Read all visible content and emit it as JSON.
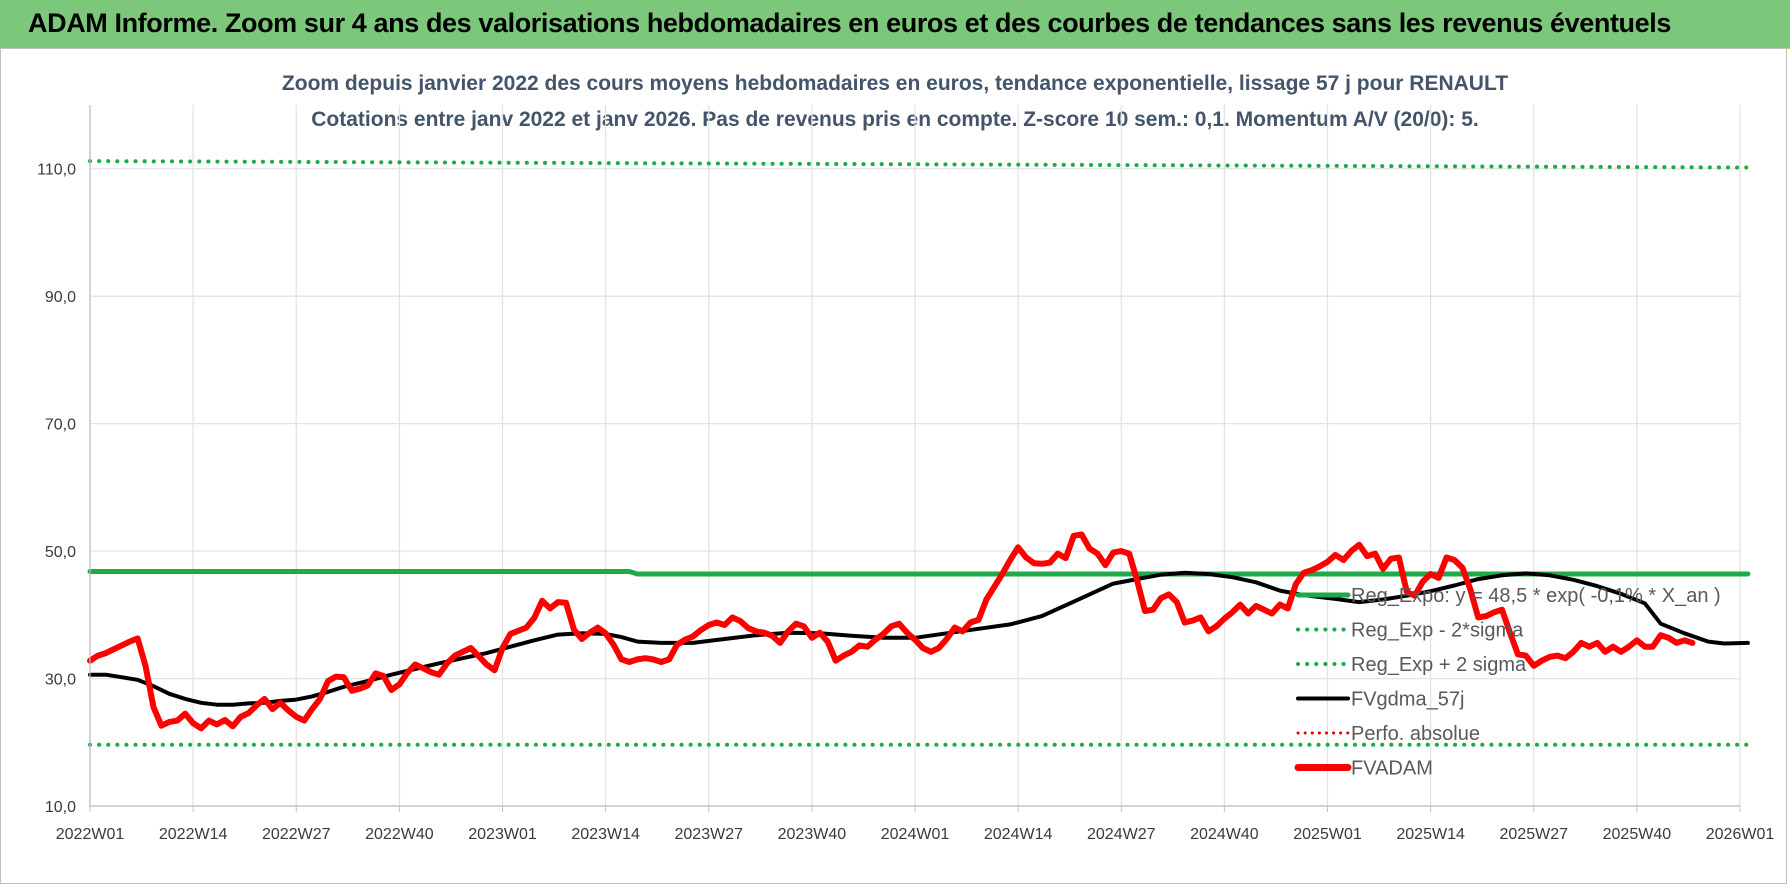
{
  "header": {
    "title": "ADAM Informe. Zoom sur 4 ans des valorisations hebdomadaires en euros et des courbes de tendances sans les revenus éventuels"
  },
  "chart_data": {
    "type": "line",
    "title": "Zoom depuis janvier 2022 des cours moyens hebdomadaires en euros, tendance exponentielle, lissage 57 j pour RENAULT",
    "subtitle": "Cotations entre janv 2022 et janv 2026. Pas de revenus pris en compte. Z-score 10 sem.: 0,1. Momentum A/V (20/0): 5.",
    "ylim": [
      10,
      120
    ],
    "yticks": [
      10,
      30,
      50,
      70,
      90,
      110
    ],
    "ytick_labels": [
      "10,0",
      "30,0",
      "50,0",
      "70,0",
      "90,0",
      "110,0"
    ],
    "xticks": [
      "2022W01",
      "2022W14",
      "2022W27",
      "2022W40",
      "2023W01",
      "2023W14",
      "2023W27",
      "2023W40",
      "2024W01",
      "2024W14",
      "2024W27",
      "2024W40",
      "2025W01",
      "2025W14",
      "2025W27",
      "2025W40",
      "2026W01"
    ],
    "grid": true,
    "legend_position": "bottom-right",
    "colors": {
      "reg_expo": "#1faa4a",
      "reg_minus": "#1faa4a",
      "reg_plus": "#1faa4a",
      "fvgdma": "#000000",
      "perfo": "#e00000",
      "fvadam": "#ff0000"
    },
    "series": [
      {
        "name": "Reg_Expo: y = 48,5 * exp( -0,1% * X_an )",
        "style": "solid-thick",
        "points": [
          [
            0,
            46.8
          ],
          [
            68,
            46.8
          ],
          [
            69,
            46.4
          ],
          [
            209,
            46.4
          ]
        ]
      },
      {
        "name": "Reg_Exp - 2*sigma",
        "style": "dotted",
        "points": [
          [
            0,
            19.6
          ],
          [
            209,
            19.6
          ]
        ]
      },
      {
        "name": "Reg_Exp + 2 sigma",
        "style": "dotted",
        "points": [
          [
            0,
            111.2
          ],
          [
            209,
            110.2
          ]
        ]
      },
      {
        "name": "FVgdma_57j",
        "style": "solid-medium",
        "points": [
          [
            0,
            30.6
          ],
          [
            2,
            30.6
          ],
          [
            6,
            29.8
          ],
          [
            8,
            28.8
          ],
          [
            10,
            27.6
          ],
          [
            12,
            26.8
          ],
          [
            14,
            26.2
          ],
          [
            16,
            25.9
          ],
          [
            18,
            25.9
          ],
          [
            20,
            26.1
          ],
          [
            22,
            26.2
          ],
          [
            24,
            26.5
          ],
          [
            26,
            26.7
          ],
          [
            28,
            27.2
          ],
          [
            30,
            27.9
          ],
          [
            32,
            28.7
          ],
          [
            35,
            29.6
          ],
          [
            38,
            30.6
          ],
          [
            41,
            31.5
          ],
          [
            44,
            32.4
          ],
          [
            47,
            33.2
          ],
          [
            50,
            34.0
          ],
          [
            53,
            35.0
          ],
          [
            56,
            36.0
          ],
          [
            59,
            36.9
          ],
          [
            62,
            37.1
          ],
          [
            65,
            37.0
          ],
          [
            67,
            36.5
          ],
          [
            69,
            35.8
          ],
          [
            72,
            35.6
          ],
          [
            76,
            35.6
          ],
          [
            80,
            36.2
          ],
          [
            84,
            36.8
          ],
          [
            88,
            37.2
          ],
          [
            92,
            37.1
          ],
          [
            96,
            36.7
          ],
          [
            100,
            36.4
          ],
          [
            104,
            36.4
          ],
          [
            108,
            37.1
          ],
          [
            112,
            37.8
          ],
          [
            116,
            38.5
          ],
          [
            120,
            39.8
          ],
          [
            123,
            41.5
          ],
          [
            126,
            43.2
          ],
          [
            129,
            44.9
          ],
          [
            132,
            45.6
          ],
          [
            135,
            46.3
          ],
          [
            138,
            46.6
          ],
          [
            141,
            46.4
          ],
          [
            144,
            45.9
          ],
          [
            147,
            45.1
          ],
          [
            150,
            43.8
          ],
          [
            153,
            43.1
          ],
          [
            157,
            42.5
          ],
          [
            160,
            42.0
          ],
          [
            163,
            42.4
          ],
          [
            166,
            43.0
          ],
          [
            169,
            43.7
          ],
          [
            172,
            44.6
          ],
          [
            175,
            45.6
          ],
          [
            178,
            46.2
          ],
          [
            181,
            46.5
          ],
          [
            184,
            46.2
          ],
          [
            187,
            45.5
          ],
          [
            190,
            44.5
          ],
          [
            193,
            43.3
          ],
          [
            196,
            41.8
          ],
          [
            198,
            38.6
          ],
          [
            201,
            37.1
          ],
          [
            204,
            35.8
          ],
          [
            206,
            35.5
          ],
          [
            209,
            35.6
          ]
        ]
      },
      {
        "name": "Perfo. absolue",
        "style": "dotted-red",
        "points": []
      },
      {
        "name": "FVADAM",
        "style": "solid-thick",
        "points": [
          [
            0,
            32.8
          ],
          [
            1,
            33.6
          ],
          [
            2,
            34.0
          ],
          [
            3,
            34.6
          ],
          [
            4,
            35.2
          ],
          [
            5,
            35.8
          ],
          [
            6,
            36.3
          ],
          [
            7,
            32.0
          ],
          [
            8,
            25.5
          ],
          [
            9,
            22.6
          ],
          [
            10,
            23.2
          ],
          [
            11,
            23.4
          ],
          [
            12,
            24.5
          ],
          [
            13,
            23.0
          ],
          [
            14,
            22.2
          ],
          [
            15,
            23.4
          ],
          [
            16,
            22.8
          ],
          [
            17,
            23.5
          ],
          [
            18,
            22.5
          ],
          [
            19,
            24.0
          ],
          [
            20,
            24.6
          ],
          [
            21,
            25.8
          ],
          [
            22,
            26.8
          ],
          [
            23,
            25.2
          ],
          [
            24,
            26.2
          ],
          [
            25,
            25.0
          ],
          [
            26,
            24.0
          ],
          [
            27,
            23.4
          ],
          [
            28,
            25.2
          ],
          [
            29,
            26.8
          ],
          [
            30,
            29.6
          ],
          [
            31,
            30.3
          ],
          [
            32,
            30.2
          ],
          [
            33,
            28.1
          ],
          [
            34,
            28.4
          ],
          [
            35,
            28.9
          ],
          [
            36,
            30.8
          ],
          [
            37,
            30.4
          ],
          [
            38,
            28.2
          ],
          [
            39,
            29.1
          ],
          [
            40,
            30.9
          ],
          [
            41,
            32.2
          ],
          [
            42,
            31.6
          ],
          [
            43,
            31.0
          ],
          [
            44,
            30.6
          ],
          [
            45,
            32.4
          ],
          [
            46,
            33.6
          ],
          [
            47,
            34.2
          ],
          [
            48,
            34.8
          ],
          [
            49,
            33.5
          ],
          [
            50,
            32.2
          ],
          [
            51,
            31.3
          ],
          [
            52,
            34.8
          ],
          [
            53,
            37.0
          ],
          [
            54,
            37.5
          ],
          [
            55,
            38.0
          ],
          [
            56,
            39.5
          ],
          [
            57,
            42.2
          ],
          [
            58,
            41.0
          ],
          [
            59,
            42.0
          ],
          [
            60,
            41.9
          ],
          [
            61,
            37.7
          ],
          [
            62,
            36.2
          ],
          [
            63,
            37.2
          ],
          [
            64,
            38.0
          ],
          [
            65,
            37.1
          ],
          [
            66,
            35.3
          ],
          [
            67,
            33.0
          ],
          [
            68,
            32.6
          ],
          [
            69,
            33.0
          ],
          [
            70,
            33.2
          ],
          [
            71,
            33.0
          ],
          [
            72,
            32.6
          ],
          [
            73,
            33.0
          ],
          [
            74,
            35.3
          ],
          [
            75,
            36.1
          ],
          [
            76,
            36.6
          ],
          [
            77,
            37.6
          ],
          [
            78,
            38.4
          ],
          [
            79,
            38.8
          ],
          [
            80,
            38.4
          ],
          [
            81,
            39.6
          ],
          [
            82,
            39.0
          ],
          [
            83,
            37.9
          ],
          [
            84,
            37.4
          ],
          [
            85,
            37.2
          ],
          [
            86,
            36.7
          ],
          [
            87,
            35.6
          ],
          [
            88,
            37.4
          ],
          [
            89,
            38.6
          ],
          [
            90,
            38.2
          ],
          [
            91,
            36.4
          ],
          [
            92,
            37.2
          ],
          [
            93,
            35.8
          ],
          [
            94,
            32.8
          ],
          [
            95,
            33.6
          ],
          [
            96,
            34.2
          ],
          [
            97,
            35.2
          ],
          [
            98,
            35.0
          ],
          [
            99,
            36.1
          ],
          [
            100,
            37.0
          ],
          [
            101,
            38.2
          ],
          [
            102,
            38.6
          ],
          [
            103,
            37.2
          ],
          [
            104,
            36.1
          ],
          [
            105,
            34.8
          ],
          [
            106,
            34.2
          ],
          [
            107,
            34.8
          ],
          [
            108,
            36.2
          ],
          [
            109,
            38.0
          ],
          [
            110,
            37.4
          ],
          [
            111,
            38.8
          ],
          [
            112,
            39.2
          ],
          [
            113,
            42.4
          ],
          [
            114,
            44.4
          ],
          [
            115,
            46.4
          ],
          [
            116,
            48.6
          ],
          [
            117,
            50.6
          ],
          [
            118,
            49.0
          ],
          [
            119,
            48.1
          ],
          [
            120,
            48.0
          ],
          [
            121,
            48.2
          ],
          [
            122,
            49.6
          ],
          [
            123,
            48.9
          ],
          [
            124,
            52.4
          ],
          [
            125,
            52.6
          ],
          [
            126,
            50.4
          ],
          [
            127,
            49.6
          ],
          [
            128,
            47.8
          ],
          [
            129,
            49.8
          ],
          [
            130,
            50.0
          ],
          [
            131,
            49.6
          ],
          [
            132,
            45.4
          ],
          [
            133,
            40.6
          ],
          [
            134,
            40.8
          ],
          [
            135,
            42.6
          ],
          [
            136,
            43.2
          ],
          [
            137,
            42.0
          ],
          [
            138,
            38.8
          ],
          [
            139,
            39.1
          ],
          [
            140,
            39.6
          ],
          [
            141,
            37.4
          ],
          [
            142,
            38.2
          ],
          [
            143,
            39.4
          ],
          [
            144,
            40.4
          ],
          [
            145,
            41.6
          ],
          [
            146,
            40.2
          ],
          [
            147,
            41.4
          ],
          [
            148,
            40.8
          ],
          [
            149,
            40.2
          ],
          [
            150,
            41.6
          ],
          [
            151,
            41.0
          ],
          [
            152,
            44.8
          ],
          [
            153,
            46.6
          ],
          [
            154,
            47.0
          ],
          [
            155,
            47.6
          ],
          [
            156,
            48.3
          ],
          [
            157,
            49.4
          ],
          [
            158,
            48.6
          ],
          [
            159,
            50.0
          ],
          [
            160,
            51.0
          ],
          [
            161,
            49.2
          ],
          [
            162,
            49.6
          ],
          [
            163,
            47.2
          ],
          [
            164,
            48.8
          ],
          [
            165,
            49.0
          ],
          [
            166,
            43.6
          ],
          [
            167,
            43.0
          ],
          [
            168,
            45.2
          ],
          [
            169,
            46.4
          ],
          [
            170,
            45.8
          ],
          [
            171,
            49.0
          ],
          [
            172,
            48.6
          ],
          [
            173,
            47.4
          ],
          [
            174,
            44.0
          ],
          [
            175,
            39.6
          ],
          [
            176,
            39.8
          ],
          [
            177,
            40.4
          ],
          [
            178,
            40.8
          ],
          [
            179,
            37.2
          ],
          [
            180,
            33.8
          ],
          [
            181,
            33.6
          ],
          [
            182,
            32.0
          ],
          [
            183,
            32.8
          ],
          [
            184,
            33.4
          ],
          [
            185,
            33.6
          ],
          [
            186,
            33.2
          ],
          [
            187,
            34.2
          ],
          [
            188,
            35.6
          ],
          [
            189,
            35.0
          ],
          [
            190,
            35.6
          ],
          [
            191,
            34.2
          ],
          [
            192,
            35.0
          ],
          [
            193,
            34.2
          ],
          [
            194,
            35.0
          ],
          [
            195,
            36.0
          ],
          [
            196,
            35.0
          ],
          [
            197,
            35.0
          ],
          [
            198,
            36.8
          ],
          [
            199,
            36.4
          ],
          [
            200,
            35.6
          ],
          [
            201,
            36.0
          ],
          [
            202,
            35.6
          ]
        ]
      }
    ]
  }
}
